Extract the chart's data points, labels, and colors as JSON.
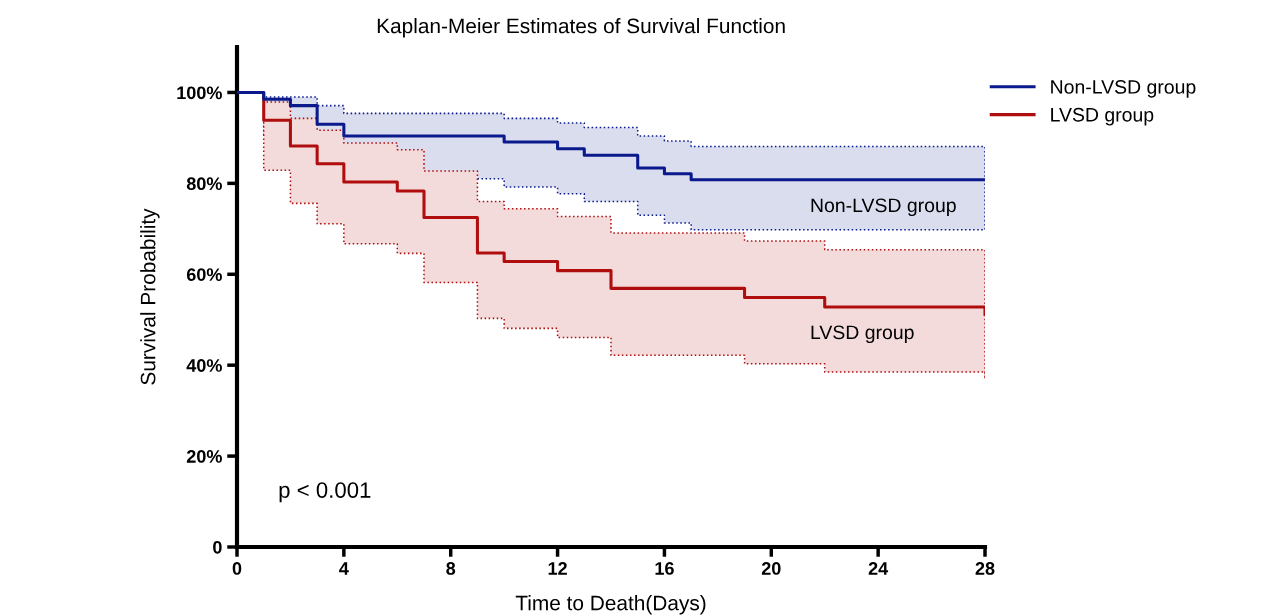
{
  "chart_data": {
    "type": "step",
    "title": "Kaplan-Meier Estimates of Survival Function",
    "xlabel": "Time to Death(Days)",
    "ylabel": "Survival Probability",
    "series": [
      {
        "name": "Non-LVSD group",
        "color": "#0a1a8c",
        "x": [
          0,
          1,
          2,
          3,
          4,
          10,
          12,
          13,
          15,
          16,
          17,
          28
        ],
        "values": [
          100,
          98.5,
          97.1,
          93.0,
          90.4,
          89.1,
          87.6,
          86.2,
          83.4,
          82.1,
          80.8,
          80.8
        ],
        "upper": [
          null,
          99.0,
          99.0,
          97.1,
          95.4,
          94.3,
          93.3,
          92.3,
          90.4,
          89.3,
          88.1,
          88.1
        ],
        "lower": [
          null,
          90.6,
          89.5,
          84.3,
          81.0,
          79.2,
          77.7,
          76.0,
          73.0,
          71.3,
          69.8,
          69.8
        ]
      },
      {
        "name": "LVSD group",
        "color": "#b00e0e",
        "x": [
          0,
          1,
          2,
          3,
          4,
          6,
          7,
          9,
          10,
          12,
          14,
          19,
          22,
          28
        ],
        "values": [
          100,
          93.9,
          88.2,
          84.3,
          80.3,
          78.3,
          72.5,
          64.7,
          62.8,
          60.8,
          56.9,
          54.9,
          52.8,
          51.2
        ],
        "upper": [
          null,
          97.9,
          94.3,
          91.7,
          88.9,
          87.4,
          82.7,
          76.0,
          74.4,
          72.7,
          69.1,
          67.3,
          65.4,
          65.4
        ],
        "lower": [
          null,
          82.9,
          75.6,
          71.1,
          66.7,
          64.6,
          58.2,
          50.3,
          48.1,
          46.1,
          42.2,
          40.3,
          38.5,
          37.0
        ]
      }
    ],
    "annotations": [
      "Non-LVSD group",
      "LVSD group",
      "p < 0.001"
    ],
    "xlim": [
      0,
      28
    ],
    "xticks": [
      0,
      4,
      8,
      12,
      16,
      20,
      24,
      28
    ],
    "ylim": [
      0,
      110
    ],
    "yticks": [
      0,
      {
        "value": 20,
        "label": "20%"
      },
      {
        "value": 40,
        "label": "40%"
      },
      {
        "value": 60,
        "label": "60%"
      },
      {
        "value": 80,
        "label": "80%"
      },
      {
        "value": 100,
        "label": "100%"
      }
    ],
    "grid": false,
    "legend": "top right",
    "line_style": "solid",
    "marker": "none"
  }
}
